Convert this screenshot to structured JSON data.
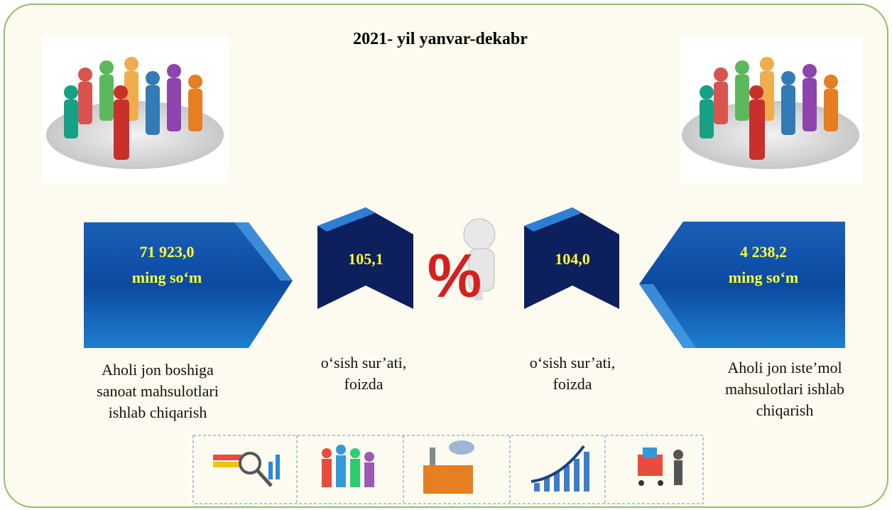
{
  "header": {
    "title": "2021- yil yanvar-dekabr"
  },
  "left": {
    "value": "71 923,0",
    "unit": "ming so‘m",
    "caption_lines": [
      "Aholi jon boshiga",
      "sanoat mahsulotlari",
      "ishlab chiqarish"
    ]
  },
  "left_growth": {
    "value": "105,1",
    "caption_lines": [
      "o‘sish sur’ati,",
      "foizda"
    ]
  },
  "percent_symbol": "%",
  "right_growth": {
    "value": "104,0",
    "caption_lines": [
      "o‘sish sur’ati,",
      "foizda"
    ]
  },
  "right": {
    "value": "4 238,2",
    "unit": "ming so‘m",
    "caption_lines": [
      "Aholi jon iste’mol",
      "mahsulotlari ishlab",
      "chiqarish"
    ]
  }
}
